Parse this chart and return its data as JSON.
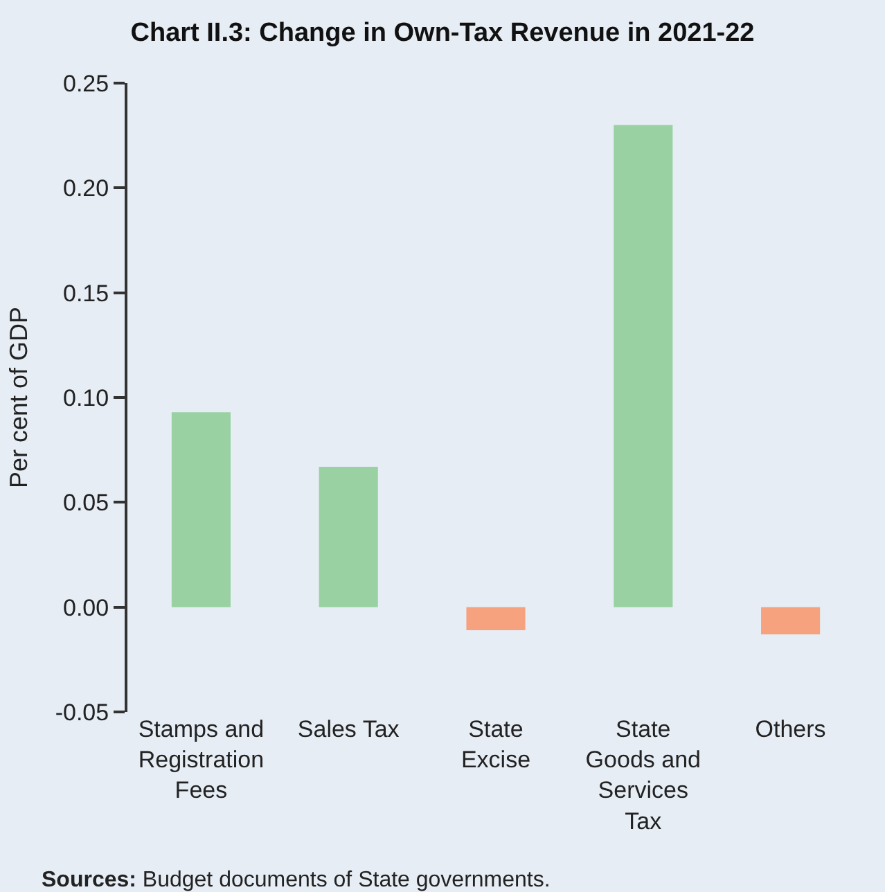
{
  "chart_data": {
    "type": "bar",
    "title": "Chart II.3: Change in Own-Tax Revenue in 2021-22",
    "ylabel": "Per cent of GDP",
    "categories": [
      "Stamps and Registration Fees",
      "Sales Tax",
      "State Excise",
      "State Goods and Services Tax",
      "Others"
    ],
    "values": [
      0.093,
      0.067,
      -0.011,
      0.23,
      -0.013
    ],
    "colors": [
      "#99d1a3",
      "#99d1a3",
      "#f7a27f",
      "#99d1a3",
      "#f7a27f"
    ],
    "ylim": [
      -0.05,
      0.25
    ],
    "yticks": [
      {
        "value": -0.05,
        "label": "-0.05"
      },
      {
        "value": 0,
        "label": "0.00"
      },
      {
        "value": 0.05,
        "label": "0.05"
      },
      {
        "value": 0.1,
        "label": "0.10"
      },
      {
        "value": 0.15,
        "label": "0.15"
      },
      {
        "value": 0.2,
        "label": "0.20"
      },
      {
        "value": 0.25,
        "label": "0.25"
      }
    ],
    "grid": false,
    "annotations": [
      "Sources: Budget documents of State governments."
    ]
  }
}
